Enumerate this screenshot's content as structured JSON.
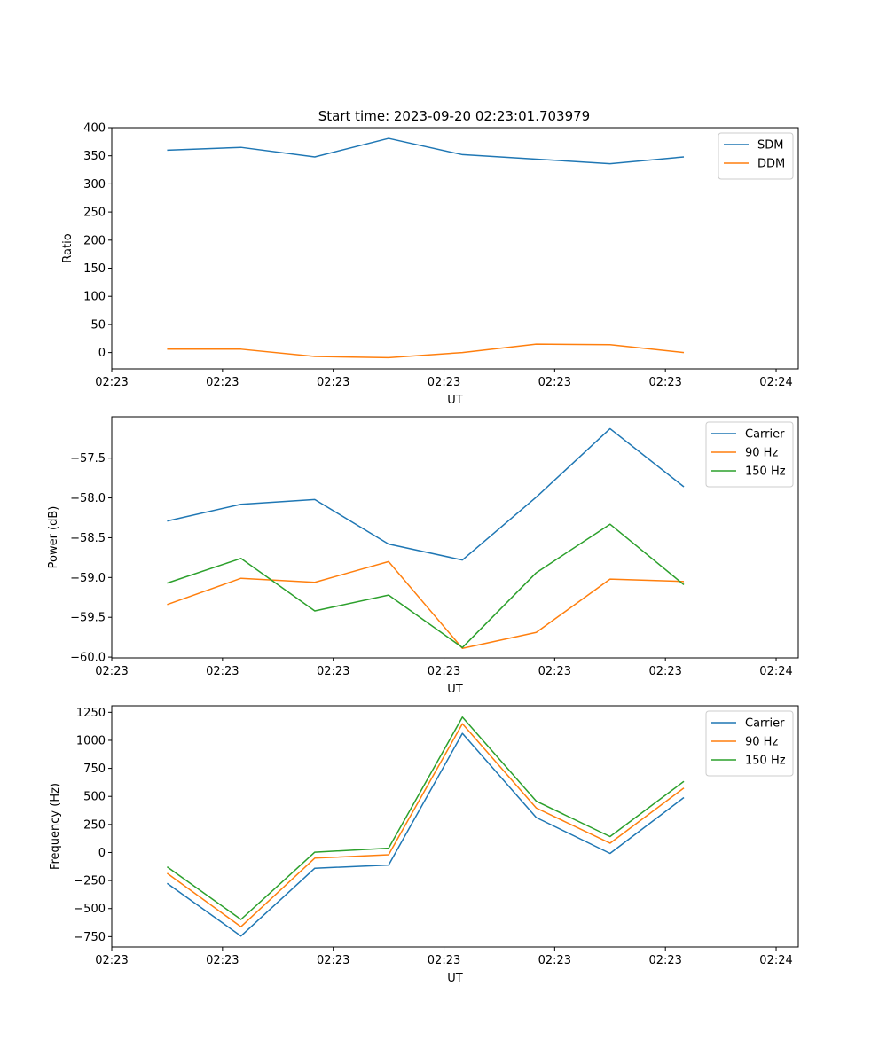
{
  "figure_title": "Start time: 2023-09-20 02:23:01.703979",
  "chart_data": [
    {
      "type": "line",
      "title": "Start time: 2023-09-20 02:23:01.703979",
      "xlabel": "UT",
      "ylabel": "Ratio",
      "xlim": [
        0,
        9.3
      ],
      "ylim": [
        -29,
        400
      ],
      "x": [
        0.75,
        1.75,
        2.75,
        3.75,
        4.75,
        5.75,
        6.75,
        7.75
      ],
      "x_tick_positions": [
        0,
        1.5,
        3,
        4.5,
        6,
        7.5,
        9
      ],
      "x_tick_labels": [
        "02:23",
        "02:23",
        "02:23",
        "02:23",
        "02:23",
        "02:23",
        "02:24"
      ],
      "y_ticks": [
        0,
        50,
        100,
        150,
        200,
        250,
        300,
        350,
        400
      ],
      "y_tick_labels": [
        "0",
        "50",
        "100",
        "150",
        "200",
        "250",
        "300",
        "350",
        "400"
      ],
      "legend_position": "top-right",
      "series": [
        {
          "name": "SDM",
          "color": "#1f77b4",
          "values": [
            360,
            365,
            348,
            381,
            352,
            344,
            336,
            348
          ]
        },
        {
          "name": "DDM",
          "color": "#ff7f0e",
          "values": [
            6,
            6,
            -7,
            -9,
            0,
            15,
            14,
            0
          ]
        }
      ]
    },
    {
      "type": "line",
      "title": "",
      "xlabel": "UT",
      "ylabel": "Power (dB)",
      "xlim": [
        0,
        9.3
      ],
      "ylim": [
        -60.01,
        -56.98
      ],
      "x": [
        0.75,
        1.75,
        2.75,
        3.75,
        4.75,
        5.75,
        6.75,
        7.75
      ],
      "x_tick_positions": [
        0,
        1.5,
        3,
        4.5,
        6,
        7.5,
        9
      ],
      "x_tick_labels": [
        "02:23",
        "02:23",
        "02:23",
        "02:23",
        "02:23",
        "02:23",
        "02:24"
      ],
      "y_ticks": [
        -60.0,
        -59.5,
        -59.0,
        -58.5,
        -58.0,
        -57.5
      ],
      "y_tick_labels": [
        "−60.0",
        "−59.5",
        "−59.0",
        "−58.5",
        "−58.0",
        "−57.5"
      ],
      "legend_position": "top-right",
      "series": [
        {
          "name": "Carrier",
          "color": "#1f77b4",
          "values": [
            -58.29,
            -58.08,
            -58.02,
            -58.58,
            -58.78,
            -57.99,
            -57.13,
            -57.86
          ]
        },
        {
          "name": "90 Hz",
          "color": "#ff7f0e",
          "values": [
            -59.34,
            -59.01,
            -59.06,
            -58.8,
            -59.89,
            -59.69,
            -59.02,
            -59.05
          ]
        },
        {
          "name": "150 Hz",
          "color": "#2ca02c",
          "values": [
            -59.07,
            -58.76,
            -59.42,
            -59.22,
            -59.88,
            -58.94,
            -58.33,
            -59.09
          ]
        }
      ]
    },
    {
      "type": "line",
      "title": "",
      "xlabel": "UT",
      "ylabel": "Frequency (Hz)",
      "xlim": [
        0,
        9.3
      ],
      "ylim": [
        -842,
        1308
      ],
      "x": [
        0.75,
        1.75,
        2.75,
        3.75,
        4.75,
        5.75,
        6.75,
        7.75
      ],
      "x_tick_positions": [
        0,
        1.5,
        3,
        4.5,
        6,
        7.5,
        9
      ],
      "x_tick_labels": [
        "02:23",
        "02:23",
        "02:23",
        "02:23",
        "02:23",
        "02:23",
        "02:24"
      ],
      "y_ticks": [
        -750,
        -500,
        -250,
        0,
        250,
        500,
        750,
        1000,
        1250
      ],
      "y_tick_labels": [
        "−750",
        "−500",
        "−250",
        "0",
        "250",
        "500",
        "750",
        "1000",
        "1250"
      ],
      "legend_position": "top-right",
      "series": [
        {
          "name": "Carrier",
          "color": "#1f77b4",
          "values": [
            -275,
            -745,
            -140,
            -112,
            1062,
            312,
            -8,
            490
          ]
        },
        {
          "name": "90 Hz",
          "color": "#ff7f0e",
          "values": [
            -185,
            -662,
            -50,
            -20,
            1148,
            397,
            83,
            575
          ]
        },
        {
          "name": "150 Hz",
          "color": "#2ca02c",
          "values": [
            -128,
            -597,
            3,
            38,
            1207,
            458,
            142,
            634
          ]
        }
      ]
    }
  ]
}
